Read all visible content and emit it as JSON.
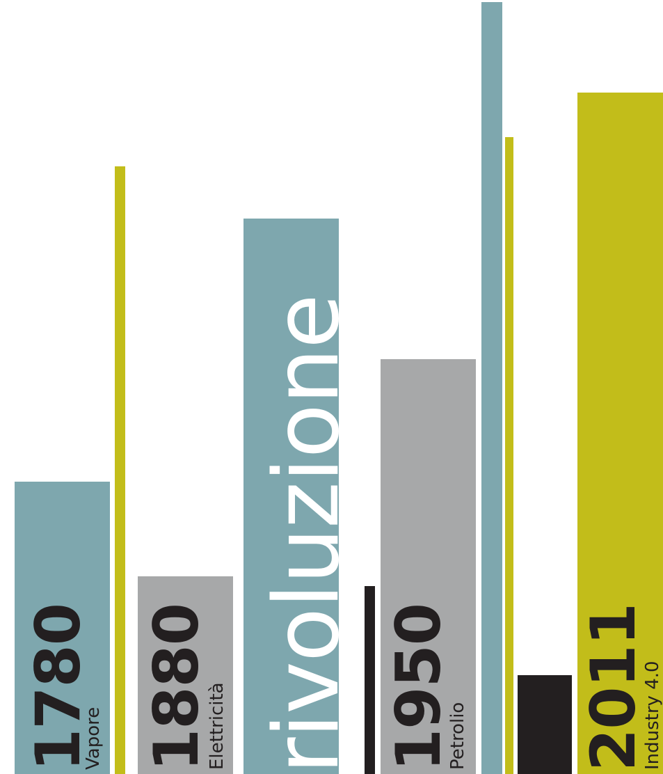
{
  "word": "rivoluzione",
  "colors": {
    "teal": "#7ea7ae",
    "grey": "#a7a8a9",
    "olive": "#c2bd1a",
    "dark": "#231f20",
    "background": "#ffffff"
  },
  "revolutions": [
    {
      "year": "1780",
      "name": "Vapore"
    },
    {
      "year": "1880",
      "name": "Elettricità"
    },
    {
      "year": "1950",
      "name": "Petrolio"
    },
    {
      "year": "2011",
      "name": "Industry 4.0"
    }
  ]
}
